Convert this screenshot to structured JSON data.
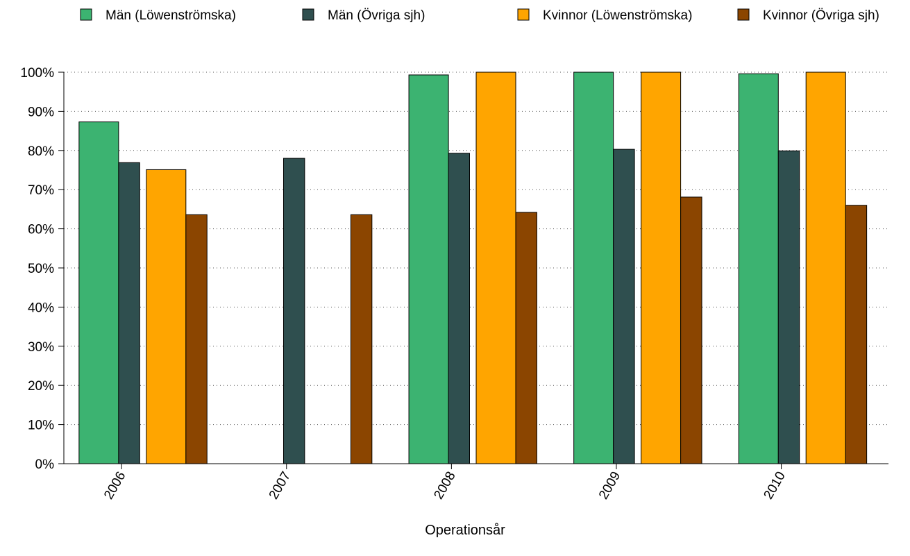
{
  "chart_data": {
    "type": "bar",
    "xlabel": "Operationsår",
    "ylabel": "",
    "ylim": [
      0,
      100
    ],
    "y_ticks": [
      "0%",
      "10%",
      "20%",
      "30%",
      "40%",
      "50%",
      "60%",
      "70%",
      "80%",
      "90%",
      "100%"
    ],
    "grid": "horizontal dotted",
    "legend_position": "top",
    "categories": [
      "2006",
      "2007",
      "2008",
      "2009",
      "2010"
    ],
    "series": [
      {
        "name": "Män (Löwenströmska)",
        "color": "#3cb371",
        "values": [
          87.3,
          null,
          99.3,
          100,
          99.6
        ]
      },
      {
        "name": "Män (Övriga sjh)",
        "color": "#2f4f4f",
        "values": [
          76.9,
          78.0,
          79.3,
          80.3,
          79.9
        ]
      },
      {
        "name": "Kvinnor (Löwenströmska)",
        "color": "#ffa500",
        "values": [
          75.1,
          null,
          100,
          100,
          100
        ]
      },
      {
        "name": "Kvinnor (Övriga sjh)",
        "color": "#8b4500",
        "values": [
          63.6,
          63.6,
          64.2,
          68.1,
          66.0
        ]
      }
    ]
  }
}
